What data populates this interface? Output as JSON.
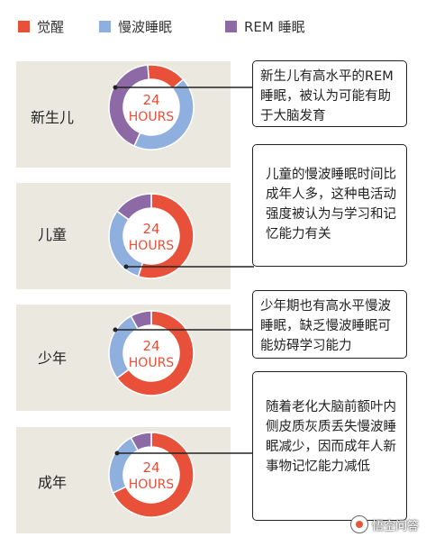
{
  "legend": [
    {
      "label": "觉醒",
      "color": "#e9503a"
    },
    {
      "label": "慢波睡眠",
      "color": "#8fb0df"
    },
    {
      "label": "REM 睡眠",
      "color": "#8d69a6"
    }
  ],
  "colors": {
    "awake": "#e9503a",
    "slow_wave": "#8fb0df",
    "rem": "#8d69a6",
    "center_text": "#e9503a",
    "row_background": "#ebe8df"
  },
  "center_text": {
    "line1": "24",
    "line2": "HOURS"
  },
  "chart_data": {
    "type": "pie",
    "series_names": [
      "觉醒",
      "慢波睡眠",
      "REM 睡眠"
    ],
    "center_label": "24 HOURS",
    "stages": [
      {
        "label": "新生儿",
        "segments": [
          {
            "name": "觉醒",
            "fraction": 0.15
          },
          {
            "name": "慢波睡眠",
            "fraction": 0.43
          },
          {
            "name": "REM 睡眠",
            "fraction": 0.42
          }
        ],
        "note": "新生儿有高水平的REM睡眠，被认为可能有助于大脑发育"
      },
      {
        "label": "儿童",
        "segments": [
          {
            "name": "觉醒",
            "fraction": 0.55
          },
          {
            "name": "慢波睡眠",
            "fraction": 0.3
          },
          {
            "name": "REM 睡眠",
            "fraction": 0.15
          }
        ],
        "note": "儿童的慢波睡眠时间比成年人多，这种电活动强度被认为与学习和记忆能力有关"
      },
      {
        "label": "少年",
        "segments": [
          {
            "name": "觉醒",
            "fraction": 0.65
          },
          {
            "name": "慢波睡眠",
            "fraction": 0.27
          },
          {
            "name": "REM 睡眠",
            "fraction": 0.08
          }
        ],
        "note": "少年期也有高水平慢波睡眠，缺乏慢波睡眠可能妨碍学习能力"
      },
      {
        "label": "成年",
        "segments": [
          {
            "name": "觉醒",
            "fraction": 0.68
          },
          {
            "name": "慢波睡眠",
            "fraction": 0.24
          },
          {
            "name": "REM 睡眠",
            "fraction": 0.08
          }
        ],
        "note": "随着老化大脑前额叶内侧皮质灰质丢失慢波睡眠减少，因而成年人新事物记忆能力减低"
      }
    ]
  },
  "watermark": {
    "text": "悟空问答"
  }
}
